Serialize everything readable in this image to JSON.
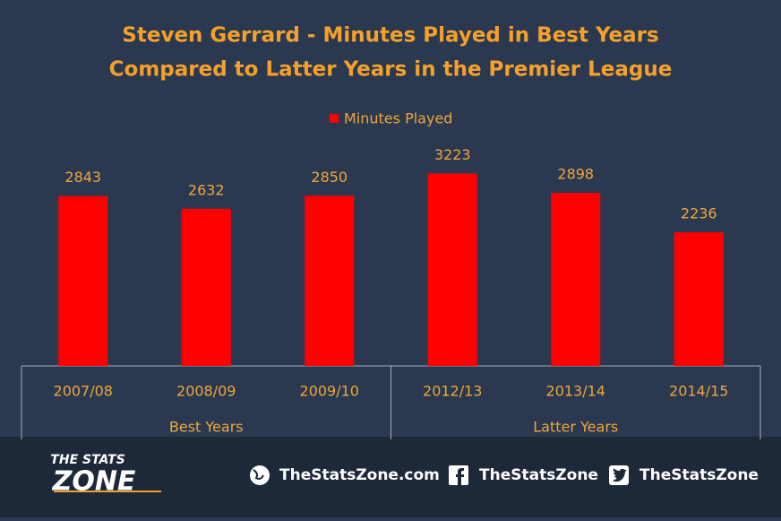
{
  "chart_data": {
    "type": "bar",
    "title": [
      "Steven Gerrard - Minutes Played in Best Years",
      "Compared to Latter Years in the Premier League"
    ],
    "groups": [
      {
        "label": "Best Years",
        "categories": [
          "2007/08",
          "2008/09",
          "2009/10"
        ]
      },
      {
        "label": "Latter Years",
        "categories": [
          "2012/13",
          "2013/14",
          "2014/15"
        ]
      }
    ],
    "series": [
      {
        "name": "Minutes Played",
        "color": "#ff0000",
        "values": [
          2843,
          2632,
          2850,
          3223,
          2898,
          2236
        ]
      }
    ],
    "ylim": [
      0,
      3500
    ],
    "legend": "top"
  },
  "footer": {
    "logo": [
      "THE STATS",
      "ZONE"
    ],
    "links": [
      "TheStatsZone.com",
      "TheStatsZone",
      "TheStatsZone"
    ]
  }
}
